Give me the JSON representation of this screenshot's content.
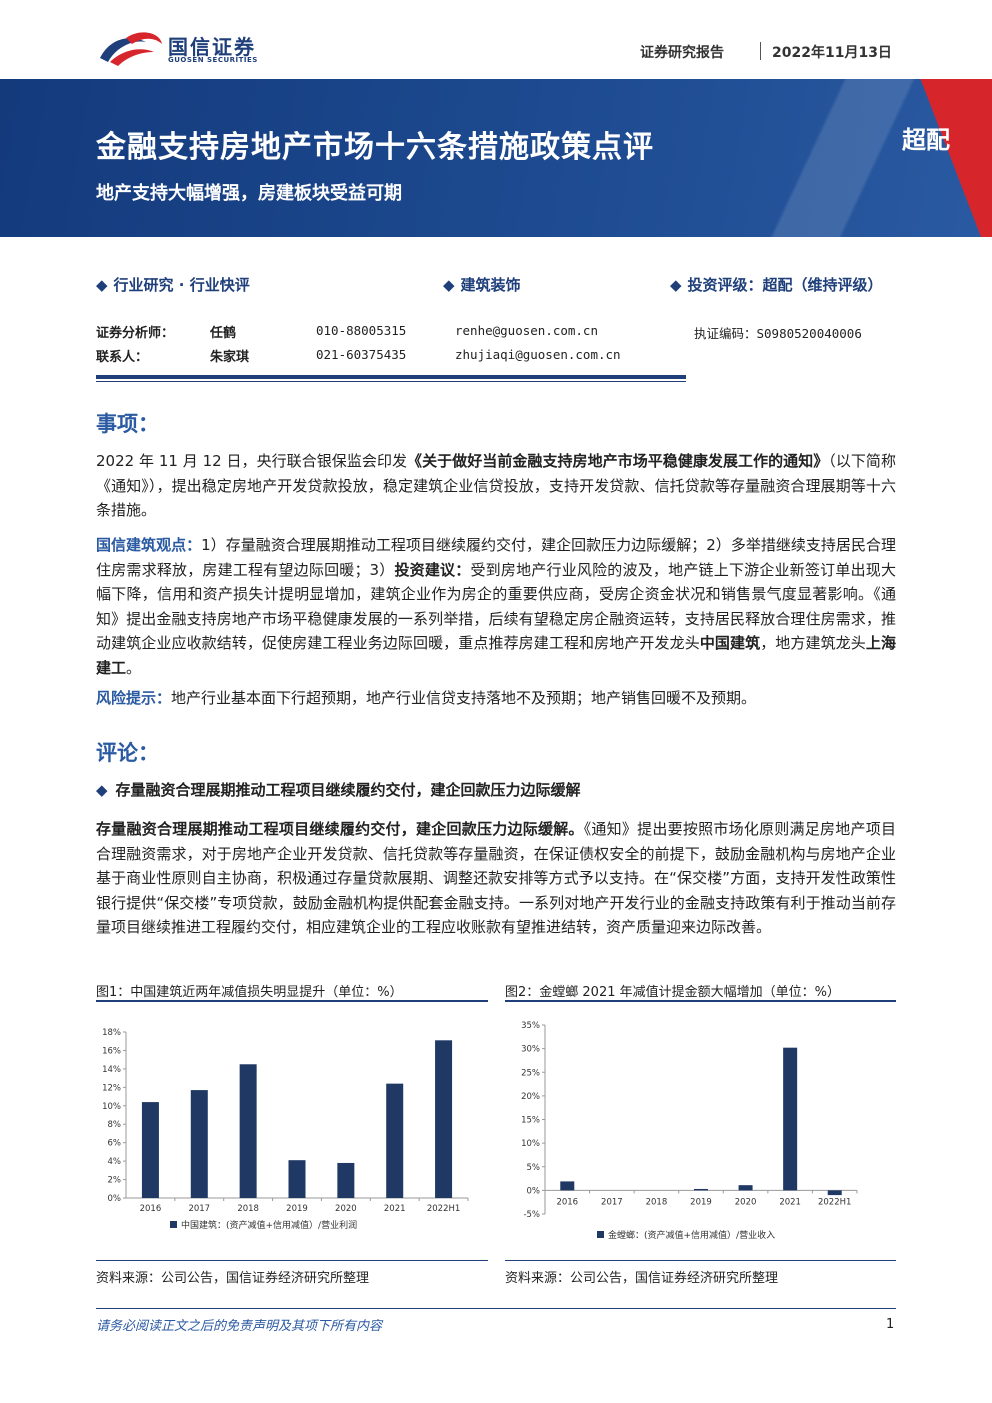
{
  "header": {
    "logo_cn": "国信证券",
    "logo_en": "GUOSEN SECURITIES",
    "report_type": "证券研究报告",
    "date": "2022年11月13日"
  },
  "banner": {
    "title": "金融支持房地产市场十六条措施政策点评",
    "subtitle": "地产支持大幅增强，房建板块受益可期",
    "rating": "超配"
  },
  "tags": {
    "category": "行业研究 · 行业快评",
    "industry": "建筑装饰",
    "rating": "投资评级：超配（维持评级）"
  },
  "analysts": [
    {
      "role": "证券分析师：",
      "name": "任鹤",
      "phone": "010-88005315",
      "email": "renhe@guosen.com.cn",
      "cert": "执证编码：S0980520040006"
    },
    {
      "role": "联系人：",
      "name": "朱家琪",
      "phone": "021-60375435",
      "email": "zhujiaqi@guosen.com.cn"
    }
  ],
  "matters": {
    "heading": "事项：",
    "p1_pre": "2022 年 11 月 12 日，央行联合银保监会印发",
    "p1_bold": "《关于做好当前金融支持房地产市场平稳健康发展工作的通知》",
    "p1_post": "（以下简称《通知》），提出稳定房地产开发贷款投放，稳定建筑企业信贷投放，支持开发贷款、信托贷款等存量融资合理展期等十六条措施。",
    "view_label": "国信建筑观点：",
    "view_a": "1）存量融资合理展期推动工程项目继续履约交付，建企回款压力边际缓解；2）多举措继续支持居民合理住房需求释放，房建工程有望边际回暖；3）",
    "view_invest": "投资建议：",
    "view_b": "受到房地产行业风险的波及，地产链上下游企业新签订单出现大幅下降，信用和资产损失计提明显增加，建筑企业作为房企的重要供应商，受房企资金状况和销售景气度显著影响。《通知》提出金融支持房地产市场平稳健康发展的一系列举措，后续有望稳定房企融资运转，支持居民释放合理住房需求，推动建筑企业应收款结转，促使房建工程业务边际回暖，重点推荐房建工程和房地产开发龙头",
    "view_co1": "中国建筑",
    "view_c": "，地方建筑龙头",
    "view_co2": "上海建工",
    "view_d": "。",
    "risk_label": "风险提示：",
    "risk_text": "地产行业基本面下行超预期，地产行业信贷支持落地不及预期；地产销售回暖不及预期。"
  },
  "comment": {
    "heading": "评论：",
    "bullet": "存量融资合理展期推动工程项目继续履约交付，建企回款压力边际缓解",
    "p_bold": "存量融资合理展期推动工程项目继续履约交付，建企回款压力边际缓解。",
    "p_text": "《通知》提出要按照市场化原则满足房地产项目合理融资需求，对于房地产企业开发贷款、信托贷款等存量融资，在保证债权安全的前提下，鼓励金融机构与房地产企业基于商业性原则自主协商，积极通过存量贷款展期、调整还款安排等方式予以支持。在“保交楼”方面，支持开发性政策性银行提供“保交楼”专项贷款，鼓励金融机构提供配套金融支持。一系列对地产开发行业的金融支持政策有利于推动当前存量项目继续推进工程履约交付，相应建筑企业的工程应收账款有望推进结转，资产质量迎来边际改善。"
  },
  "figures": [
    {
      "title": "图1：中国建筑近两年减值损失明显提升（单位：%）",
      "source": "资料来源：公司公告，国信证券经济研究所整理"
    },
    {
      "title": "图2：金螳螂 2021 年减值计提金额大幅增加（单位：%）",
      "source": "资料来源：公司公告，国信证券经济研究所整理"
    }
  ],
  "chart_data": [
    {
      "type": "bar",
      "categories": [
        "2016",
        "2017",
        "2018",
        "2019",
        "2020",
        "2021",
        "2022H1"
      ],
      "series": [
        {
          "name": "中国建筑：(资产减值+信用减值）/营业利润",
          "values": [
            10.4,
            11.7,
            14.5,
            4.1,
            3.8,
            12.4,
            17.1
          ]
        }
      ],
      "ylim": [
        0,
        18
      ],
      "yticks": [
        "0%",
        "2%",
        "4%",
        "6%",
        "8%",
        "10%",
        "12%",
        "14%",
        "16%",
        "18%"
      ],
      "legend": "bottom",
      "color": "#1f3864"
    },
    {
      "type": "bar",
      "categories": [
        "2016",
        "2017",
        "2018",
        "2019",
        "2020",
        "2021",
        "2022H1"
      ],
      "series": [
        {
          "name": "金螳螂：(资产减值+信用减值）/营业收入",
          "values": [
            1.9,
            0.0,
            0.0,
            0.3,
            1.1,
            30.2,
            -1.0
          ]
        }
      ],
      "ylim": [
        -5,
        35
      ],
      "yticks": [
        "-5%",
        "0%",
        "5%",
        "10%",
        "15%",
        "20%",
        "25%",
        "30%",
        "35%"
      ],
      "legend": "bottom",
      "color": "#1f3864"
    }
  ],
  "footer": {
    "disclaimer": "请务必阅读正文之后的免责声明及其项下所有内容",
    "page": "1"
  }
}
